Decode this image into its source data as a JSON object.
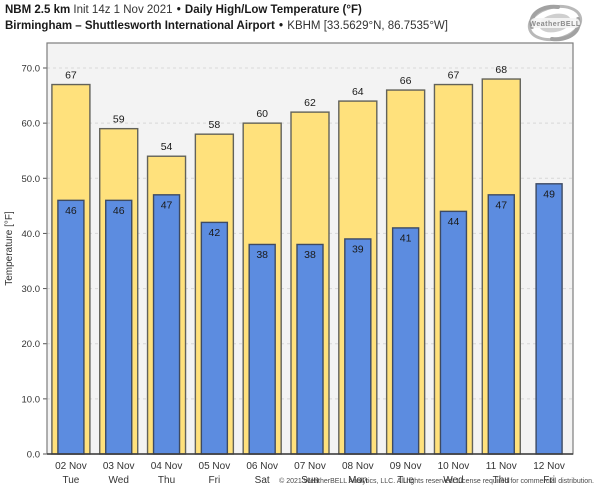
{
  "header": {
    "model": "NBM 2.5 km",
    "init": "Init 14z 1 Nov 2021",
    "separator": "•",
    "product": "Daily High/Low Temperature (°F)",
    "location": "Birmingham – Shuttlesworth International Airport",
    "station": "KBHM [33.5629°N, 86.7535°W]"
  },
  "logo": {
    "brand": "WeatherBELL"
  },
  "chart_data": {
    "type": "bar",
    "title": "Daily High/Low Temperature (°F)",
    "categories": [
      "02 Nov",
      "03 Nov",
      "04 Nov",
      "05 Nov",
      "06 Nov",
      "07 Nov",
      "08 Nov",
      "09 Nov",
      "10 Nov",
      "11 Nov",
      "12 Nov"
    ],
    "day_labels": [
      "Tue",
      "Wed",
      "Thu",
      "Fri",
      "Sat",
      "Sun",
      "Mon",
      "Tue",
      "Wed",
      "Thu",
      "Fri"
    ],
    "series": [
      {
        "name": "High",
        "color": "#ffe17c",
        "border": "#62625a",
        "values": [
          67,
          59,
          54,
          58,
          60,
          62,
          64,
          66,
          67,
          68,
          null
        ]
      },
      {
        "name": "Low",
        "color": "#5c8ce0",
        "border": "#3d4a63",
        "values": [
          46,
          46,
          47,
          42,
          38,
          38,
          39,
          41,
          44,
          47,
          49
        ]
      }
    ],
    "xlabel": "",
    "ylabel": "Temperature [°F]",
    "ylim": [
      0,
      74.5
    ],
    "yticks": [
      0,
      10,
      20,
      30,
      40,
      50,
      60,
      70
    ],
    "ytick_labels": [
      "0.0",
      "10.0",
      "20.0",
      "30.0",
      "40.0",
      "50.0",
      "60.0",
      "70.0"
    ],
    "grid": "dashed horizontal",
    "legend": "none",
    "plot_bg": "#f3f3f3",
    "grid_color": "#d8d8d8",
    "frame_color": "#7d7d7d",
    "label_color": "#1a1a1a",
    "tick_color": "#333333"
  },
  "footer": {
    "copyright": "© 2021 WeatherBELL Analytics, LLC. All rights reserved. License required for commercial distribution."
  }
}
